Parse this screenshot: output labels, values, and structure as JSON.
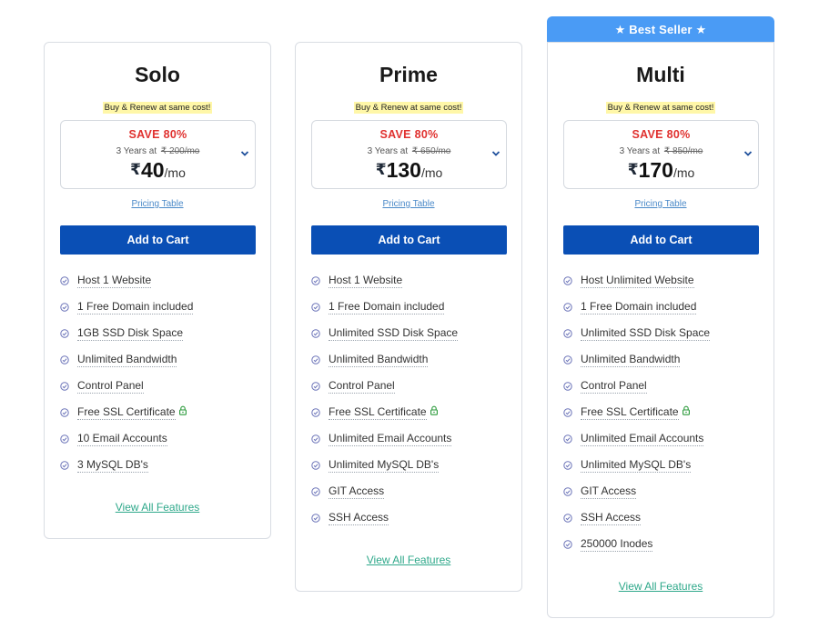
{
  "badge": "★ Best Seller ★",
  "colors": {
    "primary_button": "#0a4fb5",
    "badge": "#4a9bf5",
    "save_red": "#e0312f",
    "link_green": "#2ea88a",
    "highlight": "#fff7a8"
  },
  "plans": [
    {
      "name": "Solo",
      "tagline": "Buy & Renew at same cost!",
      "save": "SAVE 80%",
      "term": "3 Years at",
      "original_price": "₹ 200/mo",
      "currency": "₹",
      "price": "40",
      "per": "/mo",
      "pricing_link": "Pricing Table",
      "cart_label": "Add to Cart",
      "features": [
        "Host 1 Website",
        "1 Free Domain included",
        "1GB SSD Disk Space",
        "Unlimited Bandwidth",
        "Control Panel",
        "Free SSL Certificate",
        "10 Email Accounts",
        "3 MySQL DB's"
      ],
      "view_all": "View All Features"
    },
    {
      "name": "Prime",
      "tagline": "Buy & Renew at same cost!",
      "save": "SAVE 80%",
      "term": "3 Years at",
      "original_price": "₹ 650/mo",
      "currency": "₹",
      "price": "130",
      "per": "/mo",
      "pricing_link": "Pricing Table",
      "cart_label": "Add to Cart",
      "features": [
        "Host 1 Website",
        "1 Free Domain included",
        "Unlimited SSD Disk Space",
        "Unlimited Bandwidth",
        "Control Panel",
        "Free SSL Certificate",
        "Unlimited Email Accounts",
        "Unlimited MySQL DB's",
        "GIT Access",
        "SSH Access"
      ],
      "view_all": "View All Features"
    },
    {
      "name": "Multi",
      "tagline": "Buy & Renew at same cost!",
      "save": "SAVE 80%",
      "term": "3 Years at",
      "original_price": "₹ 850/mo",
      "currency": "₹",
      "price": "170",
      "per": "/mo",
      "pricing_link": "Pricing Table",
      "cart_label": "Add to Cart",
      "features": [
        "Host Unlimited Website",
        "1 Free Domain included",
        "Unlimited SSD Disk Space",
        "Unlimited Bandwidth",
        "Control Panel",
        "Free SSL Certificate",
        "Unlimited Email Accounts",
        "Unlimited MySQL DB's",
        "GIT Access",
        "SSH Access",
        "250000 Inodes"
      ],
      "view_all": "View All Features"
    }
  ]
}
